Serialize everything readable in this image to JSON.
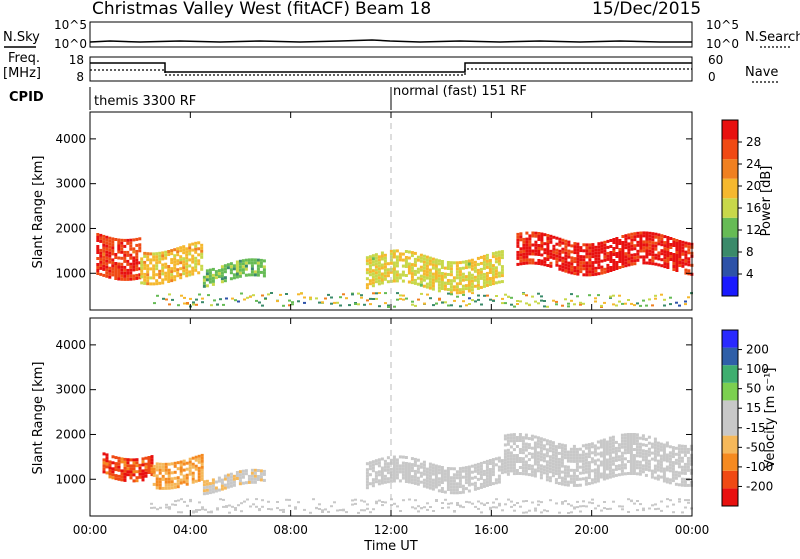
{
  "header": {
    "title": "Christmas Valley West (fitACF)",
    "beam": "Beam 18",
    "date": "15/Dec/2015"
  },
  "nsky_panel": {
    "left_label": "N.Sky",
    "right_label": "N.Search",
    "ticks_left": [
      "10^5",
      "10^0"
    ],
    "ticks_right": [
      "10^5",
      "10^0"
    ]
  },
  "freq_panel": {
    "left_label_1": "Freq.",
    "left_label_2": "[MHz]",
    "right_label": "Nave",
    "ticks_left": [
      "18",
      "8"
    ],
    "ticks_right": [
      "60",
      "0"
    ]
  },
  "cpid": {
    "label": "CPID",
    "modes": [
      {
        "name": "themis 3300 RF",
        "start": "00:00",
        "end": "12:00"
      },
      {
        "name": "normal (fast) 151 RF",
        "start": "12:00",
        "end": "24:00"
      }
    ]
  },
  "colors": {
    "power_scale": [
      "#1a1aff",
      "#2d52a8",
      "#3a8a6a",
      "#66bb55",
      "#c8d84a",
      "#f5b82e",
      "#f08020",
      "#f04a14",
      "#e8100f"
    ],
    "velocity_scale": [
      "#e8100f",
      "#f04a14",
      "#f58a20",
      "#f5b85a",
      "#c8c8c8",
      "#c8c8c8",
      "#7ccf50",
      "#3fae6f",
      "#2f5fa8",
      "#2a2aff"
    ]
  },
  "chart_data": [
    {
      "type": "heatmap",
      "title": "Power",
      "ylabel": "Slant Range [km]",
      "ylim": [
        180,
        4600
      ],
      "yticks": [
        "1000",
        "2000",
        "3000",
        "4000"
      ],
      "xlabel": "Time UT",
      "xticks": [
        "00:00",
        "04:00",
        "08:00",
        "12:00",
        "16:00",
        "20:00",
        "00:00"
      ],
      "colorbar": {
        "label": "Power [dB]",
        "ticks": [
          "4",
          "8",
          "12",
          "16",
          "20",
          "24",
          "28"
        ],
        "range": [
          0,
          30
        ]
      },
      "regions": [
        {
          "t_start": "00:15",
          "t_end": "02:00",
          "range_low": 1000,
          "range_high": 1900,
          "value_db": 26
        },
        {
          "t_start": "02:00",
          "t_end": "04:30",
          "range_low": 900,
          "range_high": 1600,
          "value_db": 18
        },
        {
          "t_start": "04:30",
          "t_end": "07:00",
          "range_low": 800,
          "range_high": 1200,
          "value_db": 12
        },
        {
          "t_start": "11:00",
          "t_end": "16:30",
          "range_low": 700,
          "range_high": 1400,
          "value_db": 16
        },
        {
          "t_start": "17:00",
          "t_end": "24:00",
          "range_low": 1100,
          "range_high": 1800,
          "value_db": 28
        }
      ]
    },
    {
      "type": "heatmap",
      "title": "Velocity",
      "ylabel": "Slant Range [km]",
      "ylim": [
        180,
        4600
      ],
      "yticks": [
        "1000",
        "2000",
        "3000",
        "4000"
      ],
      "xlabel": "Time UT",
      "xticks": [
        "00:00",
        "04:00",
        "08:00",
        "12:00",
        "16:00",
        "20:00",
        "00:00"
      ],
      "colorbar": {
        "label": "Velocity [m s⁻¹]",
        "ticks": [
          "200",
          "100",
          "50",
          "15",
          "-15",
          "-50",
          "-100",
          "-200"
        ],
        "range": [
          -250,
          250
        ]
      },
      "regions": [
        {
          "t_start": "00:30",
          "t_end": "02:30",
          "range_low": 1100,
          "range_high": 1600,
          "value_mps": -180
        },
        {
          "t_start": "02:30",
          "t_end": "04:30",
          "range_low": 900,
          "range_high": 1500,
          "value_mps": -100
        },
        {
          "t_start": "04:30",
          "t_end": "07:00",
          "range_low": 800,
          "range_high": 1100,
          "value_mps": -40
        },
        {
          "t_start": "11:00",
          "t_end": "16:30",
          "range_low": 800,
          "range_high": 1400,
          "value_mps": 0
        },
        {
          "t_start": "16:30",
          "t_end": "24:00",
          "range_low": 1000,
          "range_high": 1900,
          "value_mps": 0
        }
      ]
    }
  ]
}
